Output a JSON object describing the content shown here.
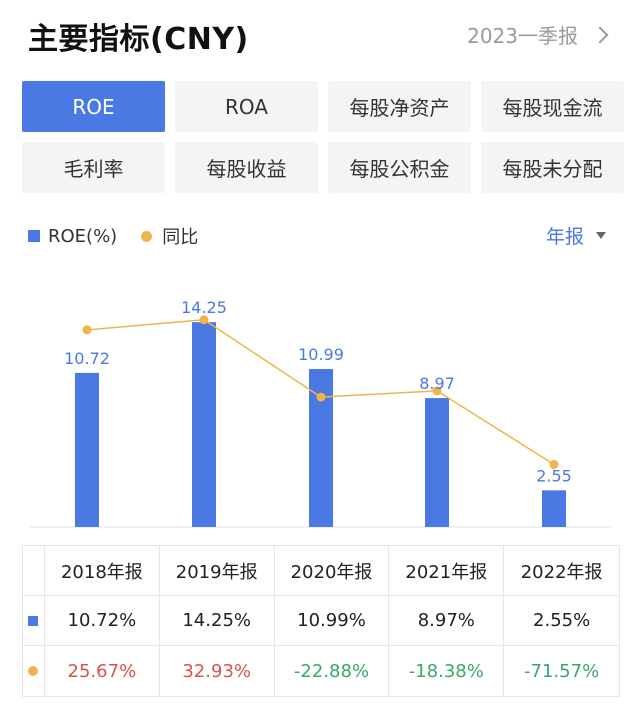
{
  "header": {
    "title": "主要指标(CNY)",
    "period": "2023一季报"
  },
  "tabs": [
    {
      "label": "ROE",
      "active": true
    },
    {
      "label": "ROA",
      "active": false
    },
    {
      "label": "每股净资产",
      "active": false
    },
    {
      "label": "每股现金流",
      "active": false
    },
    {
      "label": "毛利率",
      "active": false
    },
    {
      "label": "每股收益",
      "active": false
    },
    {
      "label": "每股公积金",
      "active": false
    },
    {
      "label": "每股未分配",
      "active": false
    }
  ],
  "legend": {
    "bar_label": "ROE(%)",
    "line_label": "同比",
    "frequency": "年报"
  },
  "colors": {
    "bar": "#4a79e3",
    "line": "#f0b54a",
    "positive": "#d9534f",
    "negative": "#3aa86b"
  },
  "chart_data": {
    "type": "bar",
    "categories": [
      "2018年报",
      "2019年报",
      "2020年报",
      "2021年报",
      "2022年报"
    ],
    "series": [
      {
        "name": "ROE(%)",
        "type": "bar",
        "values": [
          10.72,
          14.25,
          10.99,
          8.97,
          2.55
        ]
      },
      {
        "name": "同比",
        "type": "line",
        "values": [
          25.67,
          32.93,
          -22.88,
          -18.38,
          -71.57
        ]
      }
    ],
    "bar_labels": [
      "10.72",
      "14.25",
      "10.99",
      "8.97",
      "2.55"
    ],
    "ylim": [
      0,
      16
    ]
  },
  "table": {
    "headers": [
      "2018年报",
      "2019年报",
      "2020年报",
      "2021年报",
      "2022年报"
    ],
    "roe_row": [
      "10.72%",
      "14.25%",
      "10.99%",
      "8.97%",
      "2.55%"
    ],
    "yoy_row": [
      "25.67%",
      "32.93%",
      "-22.88%",
      "-18.38%",
      "-71.57%"
    ]
  }
}
